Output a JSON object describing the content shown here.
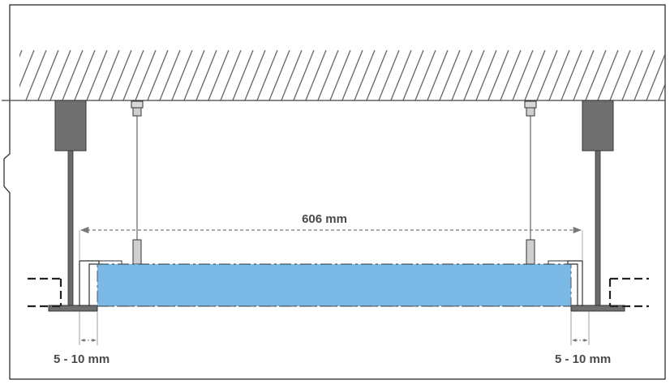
{
  "dimensions": {
    "panel_width_label": "606 mm",
    "gap_left_label": "5 - 10 mm",
    "gap_right_label": "5 - 10 mm"
  },
  "colors": {
    "panel_fill": "#7ab8e6",
    "hanger_block": "#6f6f6f",
    "rod": "#5a5a5a",
    "line": "#333333",
    "hatch": "#555555",
    "dimension_line": "#777777",
    "label_text": "#4a4a4a"
  },
  "icons": {
    "wire_anchor_left": "ceiling-anchor-icon",
    "wire_anchor_right": "ceiling-anchor-icon"
  }
}
